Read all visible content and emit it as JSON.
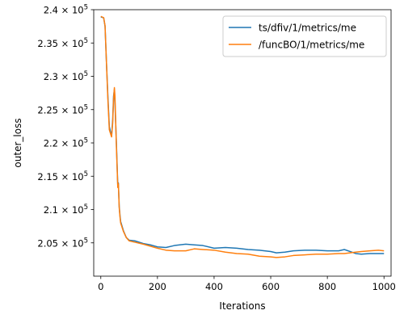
{
  "chart_data": {
    "type": "line",
    "xlabel": "Iterations",
    "ylabel": "outer_loss",
    "xlim": [
      -25,
      1025
    ],
    "ylim": [
      200000,
      240000
    ],
    "x_ticks": [
      0,
      200,
      400,
      600,
      800,
      1000
    ],
    "x_tick_labels": [
      "0",
      "200",
      "400",
      "600",
      "800",
      "1000"
    ],
    "y_ticks": [
      205000,
      210000,
      215000,
      220000,
      225000,
      230000,
      235000,
      240000
    ],
    "y_tick_labels": [
      {
        "mantissa": "2.05",
        "times": "×",
        "base": "10",
        "exp": "5"
      },
      {
        "mantissa": "2.1",
        "times": "×",
        "base": "10",
        "exp": "5"
      },
      {
        "mantissa": "2.15",
        "times": "×",
        "base": "10",
        "exp": "5"
      },
      {
        "mantissa": "2.2",
        "times": "×",
        "base": "10",
        "exp": "5"
      },
      {
        "mantissa": "2.25",
        "times": "×",
        "base": "10",
        "exp": "5"
      },
      {
        "mantissa": "2.3",
        "times": "×",
        "base": "10",
        "exp": "5"
      },
      {
        "mantissa": "2.35",
        "times": "×",
        "base": "10",
        "exp": "5"
      },
      {
        "mantissa": "2.4",
        "times": "×",
        "base": "10",
        "exp": "5"
      }
    ],
    "grid": false,
    "legend_position": "top-right",
    "series": [
      {
        "name": "ts/dfiv/1/metrics/me",
        "color": "#1f77b4",
        "points": [
          [
            0,
            238900
          ],
          [
            10,
            238800
          ],
          [
            15,
            237500
          ],
          [
            20,
            232000
          ],
          [
            25,
            227000
          ],
          [
            30,
            222500
          ],
          [
            35,
            221500
          ],
          [
            38,
            221000
          ],
          [
            42,
            223500
          ],
          [
            45,
            227000
          ],
          [
            48,
            228000
          ],
          [
            50,
            226000
          ],
          [
            55,
            220000
          ],
          [
            60,
            213500
          ],
          [
            62,
            214000
          ],
          [
            65,
            210500
          ],
          [
            68,
            209000
          ],
          [
            70,
            208200
          ],
          [
            80,
            206800
          ],
          [
            90,
            205800
          ],
          [
            100,
            205400
          ],
          [
            120,
            205300
          ],
          [
            150,
            204900
          ],
          [
            175,
            204700
          ],
          [
            200,
            204400
          ],
          [
            230,
            204300
          ],
          [
            260,
            204600
          ],
          [
            300,
            204800
          ],
          [
            330,
            204700
          ],
          [
            360,
            204600
          ],
          [
            400,
            204200
          ],
          [
            440,
            204300
          ],
          [
            480,
            204200
          ],
          [
            520,
            204000
          ],
          [
            560,
            203900
          ],
          [
            600,
            203700
          ],
          [
            620,
            203500
          ],
          [
            650,
            203600
          ],
          [
            680,
            203800
          ],
          [
            720,
            203900
          ],
          [
            760,
            203900
          ],
          [
            800,
            203800
          ],
          [
            840,
            203800
          ],
          [
            860,
            204000
          ],
          [
            880,
            203700
          ],
          [
            900,
            203400
          ],
          [
            920,
            203300
          ],
          [
            950,
            203400
          ],
          [
            980,
            203400
          ],
          [
            1000,
            203400
          ]
        ]
      },
      {
        "name": "/funcBO/1/metrics/me",
        "color": "#ff7f0e",
        "points": [
          [
            0,
            239000
          ],
          [
            10,
            238800
          ],
          [
            15,
            237600
          ],
          [
            20,
            232000
          ],
          [
            25,
            226500
          ],
          [
            30,
            222000
          ],
          [
            35,
            221300
          ],
          [
            38,
            220900
          ],
          [
            42,
            223000
          ],
          [
            45,
            226500
          ],
          [
            48,
            228300
          ],
          [
            50,
            227000
          ],
          [
            55,
            219500
          ],
          [
            60,
            213300
          ],
          [
            62,
            213900
          ],
          [
            65,
            210300
          ],
          [
            68,
            208800
          ],
          [
            70,
            208000
          ],
          [
            80,
            206700
          ],
          [
            90,
            205800
          ],
          [
            100,
            205300
          ],
          [
            120,
            205100
          ],
          [
            150,
            204800
          ],
          [
            175,
            204500
          ],
          [
            200,
            204200
          ],
          [
            230,
            203900
          ],
          [
            260,
            203800
          ],
          [
            300,
            203800
          ],
          [
            330,
            204100
          ],
          [
            360,
            204000
          ],
          [
            400,
            203900
          ],
          [
            440,
            203600
          ],
          [
            480,
            203400
          ],
          [
            520,
            203300
          ],
          [
            560,
            203000
          ],
          [
            600,
            202900
          ],
          [
            620,
            202800
          ],
          [
            650,
            202900
          ],
          [
            680,
            203100
          ],
          [
            720,
            203200
          ],
          [
            760,
            203300
          ],
          [
            800,
            203300
          ],
          [
            840,
            203400
          ],
          [
            860,
            203400
          ],
          [
            880,
            203500
          ],
          [
            900,
            203600
          ],
          [
            920,
            203700
          ],
          [
            950,
            203800
          ],
          [
            980,
            203900
          ],
          [
            1000,
            203800
          ]
        ]
      }
    ]
  }
}
